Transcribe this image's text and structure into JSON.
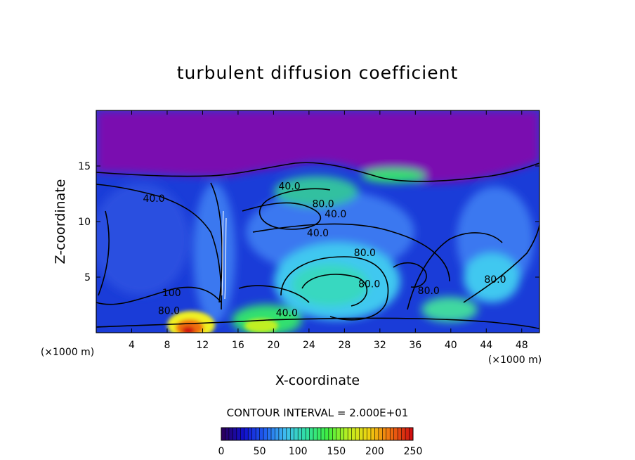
{
  "chart_data": {
    "type": "heatmap",
    "title": "turbulent diffusion coefficient",
    "xlabel": "X-coordinate",
    "ylabel": "Z-coordinate",
    "x_unit": "(×1000 m)",
    "z_unit": "(×1000 m)",
    "xlim": [
      0,
      50
    ],
    "ylim": [
      0,
      20
    ],
    "x_ticks": [
      4,
      8,
      12,
      16,
      20,
      24,
      28,
      32,
      36,
      40,
      44,
      48
    ],
    "y_ticks": [
      5,
      10,
      15
    ],
    "contour_interval_text": "CONTOUR INTERVAL = 2.000E+01",
    "contour_labels": [
      {
        "text": "40.0",
        "x": 6.5,
        "z": 12.1
      },
      {
        "text": "40.0",
        "x": 21.8,
        "z": 13.2
      },
      {
        "text": "80.0",
        "x": 25.6,
        "z": 11.6
      },
      {
        "text": "40.0",
        "x": 27.0,
        "z": 10.7
      },
      {
        "text": "40.0",
        "x": 25.0,
        "z": 9.0
      },
      {
        "text": "80.0",
        "x": 30.3,
        "z": 7.2
      },
      {
        "text": "80.0",
        "x": 30.8,
        "z": 4.4
      },
      {
        "text": "80.0",
        "x": 37.5,
        "z": 3.8
      },
      {
        "text": "80.0",
        "x": 45.0,
        "z": 4.8
      },
      {
        "text": "40.0",
        "x": 21.5,
        "z": 1.8
      },
      {
        "text": "100",
        "x": 8.5,
        "z": 3.6
      },
      {
        "text": "80.0",
        "x": 8.2,
        "z": 2.0
      }
    ],
    "colorbar": {
      "min": 0,
      "max": 250,
      "ticks": [
        0,
        50,
        100,
        150,
        200,
        250
      ],
      "colors": [
        "#2a0060",
        "#1010d0",
        "#2060f0",
        "#40c0f0",
        "#30e0a0",
        "#40f040",
        "#c0f020",
        "#f0d010",
        "#f07010",
        "#d01010"
      ]
    },
    "field_colors": {
      "upper_low": "#7a10b0",
      "low": "#1a3cd8",
      "mid": "#3a78f0",
      "cyan": "#40c8f0",
      "green": "#30e070",
      "yellow": "#f0f020",
      "orange": "#f07010",
      "red": "#d01010"
    }
  }
}
